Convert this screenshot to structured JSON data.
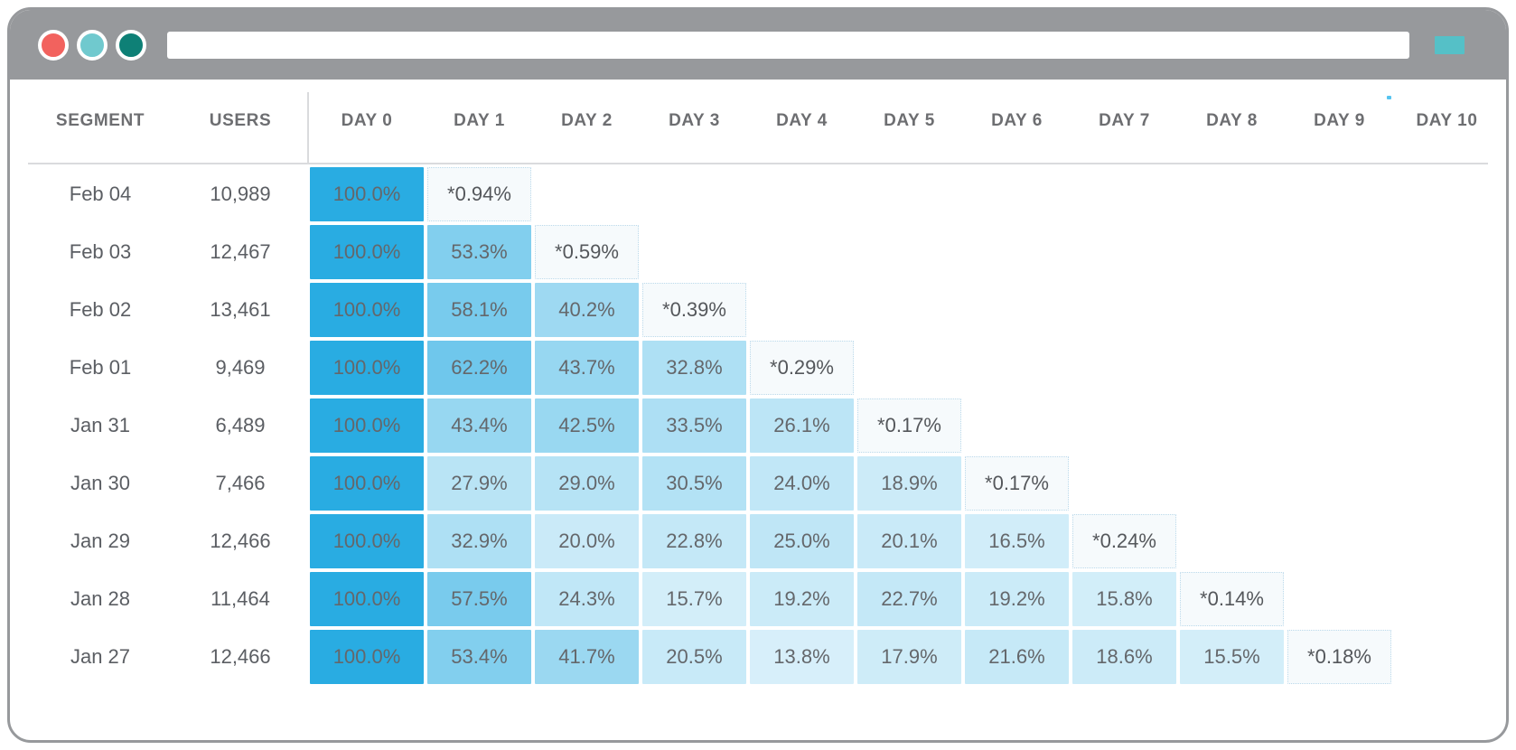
{
  "window": {
    "traffic_lights": [
      {
        "name": "close",
        "color": "#F2625E"
      },
      {
        "name": "minimize",
        "color": "#70C9CE"
      },
      {
        "name": "zoom",
        "color": "#0E8076"
      }
    ],
    "url_value": ""
  },
  "colors": {
    "chrome": "#97999C",
    "action_button": "#55C0C7",
    "base_cell": "#29ACE2",
    "starred_cell_bg": "#F6FAFC",
    "speck": "#56C4F0"
  },
  "table": {
    "columns": [
      "SEGMENT",
      "USERS",
      "DAY 0",
      "DAY 1",
      "DAY 2",
      "DAY 3",
      "DAY 4",
      "DAY 5",
      "DAY 6",
      "DAY 7",
      "DAY 8",
      "DAY 9",
      "DAY 10"
    ],
    "rows": [
      {
        "segment": "Feb 04",
        "users": "10,989",
        "values": [
          "100.0%",
          "*0.94%"
        ]
      },
      {
        "segment": "Feb 03",
        "users": "12,467",
        "values": [
          "100.0%",
          "53.3%",
          "*0.59%"
        ]
      },
      {
        "segment": "Feb 02",
        "users": "13,461",
        "values": [
          "100.0%",
          "58.1%",
          "40.2%",
          "*0.39%"
        ]
      },
      {
        "segment": "Feb 01",
        "users": "9,469",
        "values": [
          "100.0%",
          "62.2%",
          "43.7%",
          "32.8%",
          "*0.29%"
        ]
      },
      {
        "segment": "Jan 31",
        "users": "6,489",
        "values": [
          "100.0%",
          "43.4%",
          "42.5%",
          "33.5%",
          "26.1%",
          "*0.17%"
        ]
      },
      {
        "segment": "Jan 30",
        "users": "7,466",
        "values": [
          "100.0%",
          "27.9%",
          "29.0%",
          "30.5%",
          "24.0%",
          "18.9%",
          "*0.17%"
        ]
      },
      {
        "segment": "Jan 29",
        "users": "12,466",
        "values": [
          "100.0%",
          "32.9%",
          "20.0%",
          "22.8%",
          "25.0%",
          "20.1%",
          "16.5%",
          "*0.24%"
        ]
      },
      {
        "segment": "Jan 28",
        "users": "11,464",
        "values": [
          "100.0%",
          "57.5%",
          "24.3%",
          "15.7%",
          "19.2%",
          "22.7%",
          "19.2%",
          "15.8%",
          "*0.14%"
        ]
      },
      {
        "segment": "Jan 27",
        "users": "12,466",
        "values": [
          "100.0%",
          "53.4%",
          "41.7%",
          "20.5%",
          "13.8%",
          "17.9%",
          "21.6%",
          "18.6%",
          "15.5%",
          "*0.18%"
        ]
      }
    ]
  }
}
